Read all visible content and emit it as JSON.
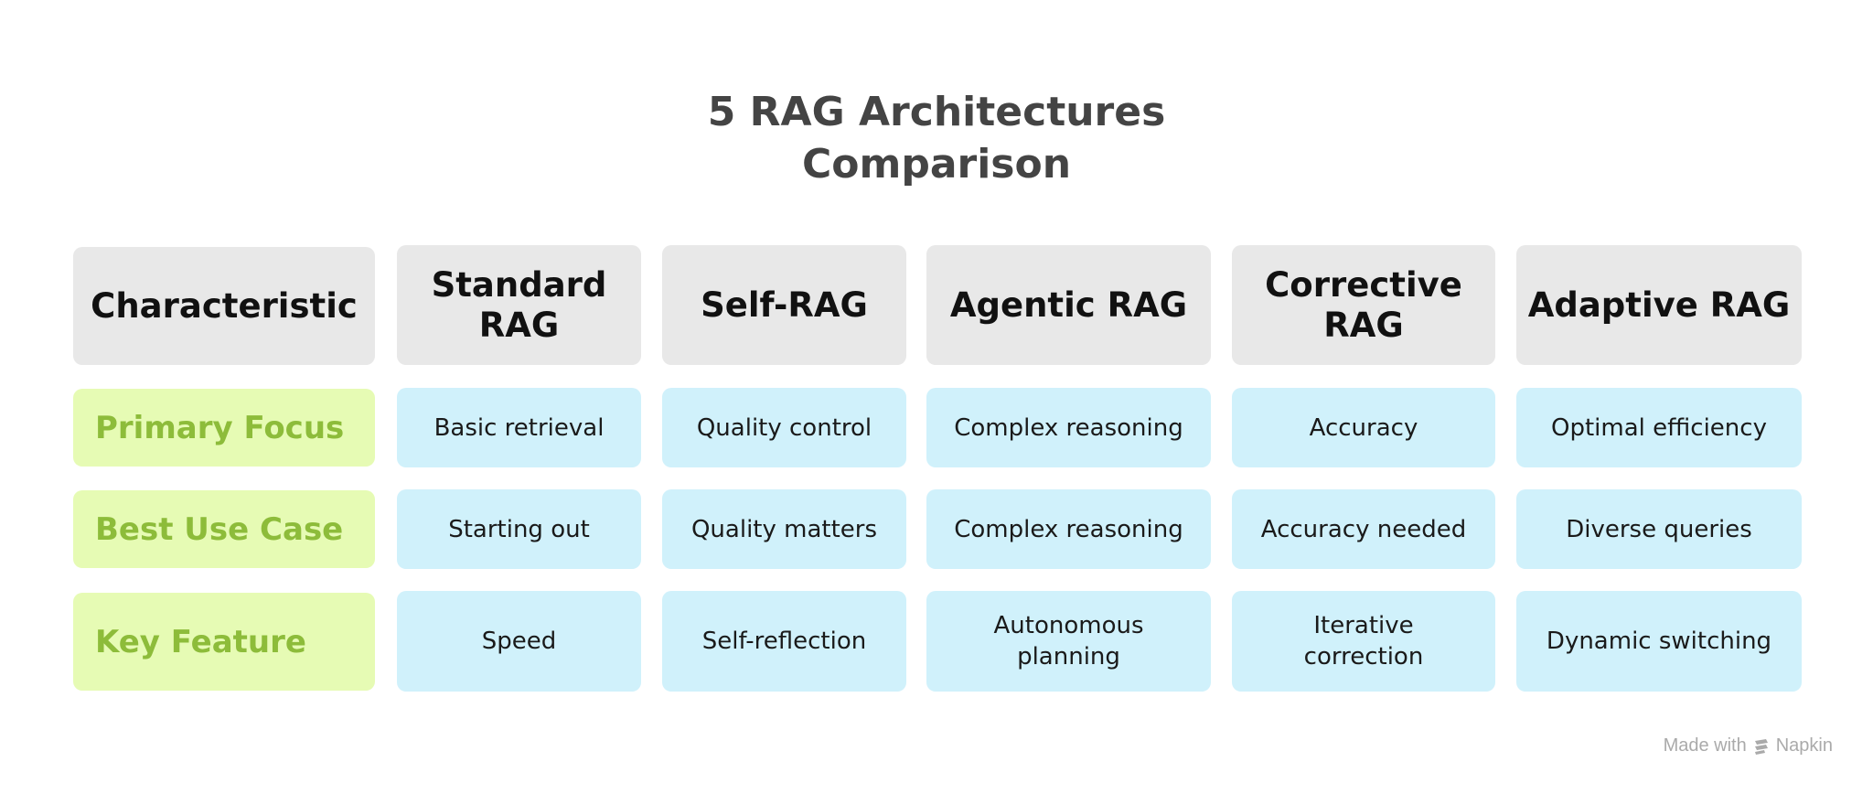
{
  "title": {
    "line1": "5 RAG Architectures",
    "line2": "Comparison"
  },
  "header": {
    "characteristic": "Characteristic",
    "columns": [
      "Standard RAG",
      "Self-RAG",
      "Agentic RAG",
      "Corrective RAG",
      "Adaptive RAG"
    ]
  },
  "rows": [
    {
      "label": "Primary Focus",
      "cells": [
        "Basic retrieval",
        "Quality control",
        "Complex reasoning",
        "Accuracy",
        "Optimal efficiency"
      ]
    },
    {
      "label": "Best Use Case",
      "cells": [
        "Starting out",
        "Quality matters",
        "Complex reasoning",
        "Accuracy needed",
        "Diverse queries"
      ]
    },
    {
      "label": "Key Feature",
      "cells": [
        "Speed",
        "Self-reflection",
        "Autonomous planning",
        "Iterative correction",
        "Dynamic switching"
      ]
    }
  ],
  "credit": {
    "made_with": "Made with",
    "brand": "Napkin",
    "icon": "napkin-logo-icon"
  },
  "colors": {
    "header_bg": "#e8e8e8",
    "label_bg": "#e6fbb4",
    "label_text": "#8dbc3a",
    "value_bg": "#d0f1fb",
    "title_text": "#444444"
  }
}
